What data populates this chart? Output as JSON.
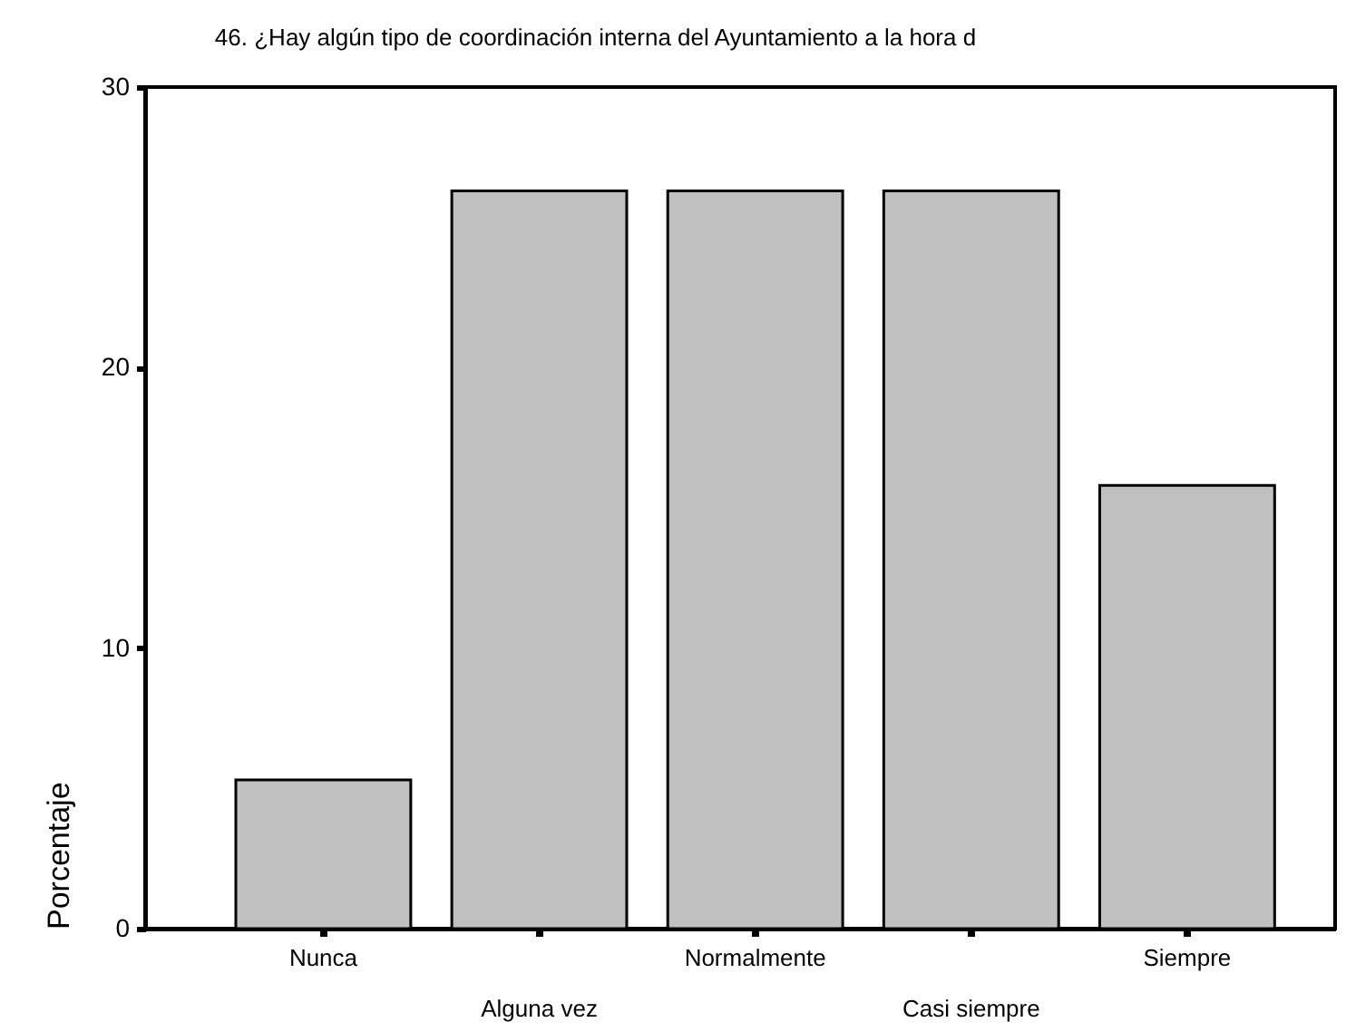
{
  "chart_data": {
    "type": "bar",
    "title": "46. ¿Hay algún tipo de coordinación interna del Ayuntamiento a la hora d",
    "ylabel": "Porcentaje",
    "categories": [
      "Nunca",
      "Alguna vez",
      "Normalmente",
      "Casi siempre",
      "Siempre"
    ],
    "values": [
      5.3,
      26.3,
      26.3,
      26.3,
      15.8
    ],
    "color": "#c0c0c0",
    "ylim": [
      0,
      30
    ],
    "yticks": [
      0,
      10,
      20,
      30
    ],
    "grid": false
  }
}
